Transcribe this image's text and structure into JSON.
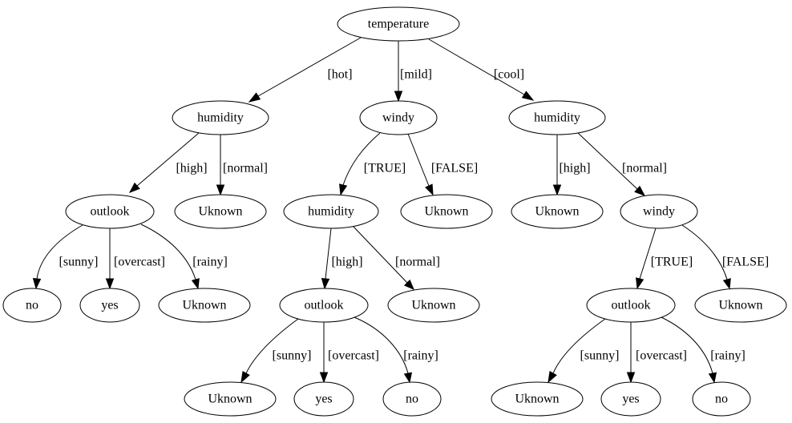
{
  "nodes": {
    "n_root": "temperature",
    "n_hum1": "humidity",
    "n_windy1": "windy",
    "n_hum2": "humidity",
    "n_out1": "outlook",
    "n_unk1": "Uknown",
    "n_hum3": "humidity",
    "n_unk2": "Uknown",
    "n_unk3": "Uknown",
    "n_windy2": "windy",
    "n_no1": "no",
    "n_yes1": "yes",
    "n_unk4": "Uknown",
    "n_out2": "outlook",
    "n_unk5": "Uknown",
    "n_out3": "outlook",
    "n_unk6": "Uknown",
    "n_unk7": "Uknown",
    "n_yes2": "yes",
    "n_no2": "no",
    "n_unk8": "Uknown",
    "n_yes3": "yes",
    "n_no3": "no"
  },
  "edges": {
    "e_hot": "[hot]",
    "e_mild": "[mild]",
    "e_cool": "[cool]",
    "e_h1_high": "[high]",
    "e_h1_normal": "[normal]",
    "e_w1_true": "[TRUE]",
    "e_w1_false": "[FALSE]",
    "e_h2_high": "[high]",
    "e_h2_normal": "[normal]",
    "e_o1_sunny": "[sunny]",
    "e_o1_overcast": "[overcast]",
    "e_o1_rainy": "[rainy]",
    "e_h3_high": "[high]",
    "e_h3_normal": "[normal]",
    "e_w2_true": "[TRUE]",
    "e_w2_false": "[FALSE]",
    "e_o2_sunny": "[sunny]",
    "e_o2_overcast": "[overcast]",
    "e_o2_rainy": "[rainy]",
    "e_o3_sunny": "[sunny]",
    "e_o3_overcast": "[overcast]",
    "e_o3_rainy": "[rainy]"
  }
}
